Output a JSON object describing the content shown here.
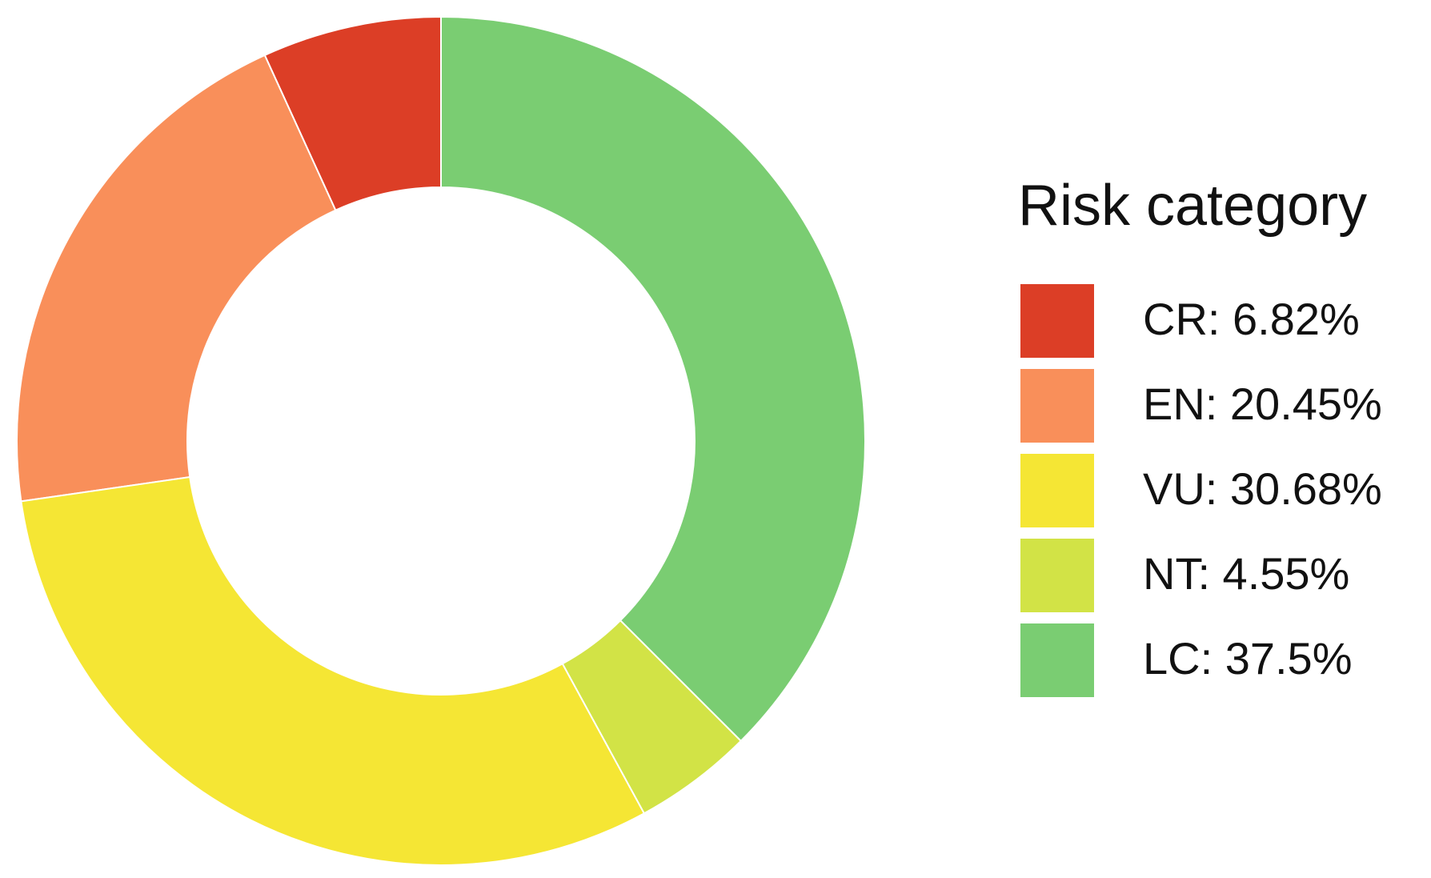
{
  "chart_data": {
    "type": "donut",
    "legend_title": "Risk category",
    "categories": [
      "CR: 6.82%",
      "EN: 20.45%",
      "VU: 30.68%",
      "NT: 4.55%",
      "LC: 37.5%"
    ],
    "values": [
      6.82,
      20.45,
      30.68,
      4.55,
      37.5
    ],
    "colors": [
      "#dc3e26",
      "#f98f5a",
      "#f5e634",
      "#d2e346",
      "#7acd72"
    ],
    "legend": "right"
  }
}
